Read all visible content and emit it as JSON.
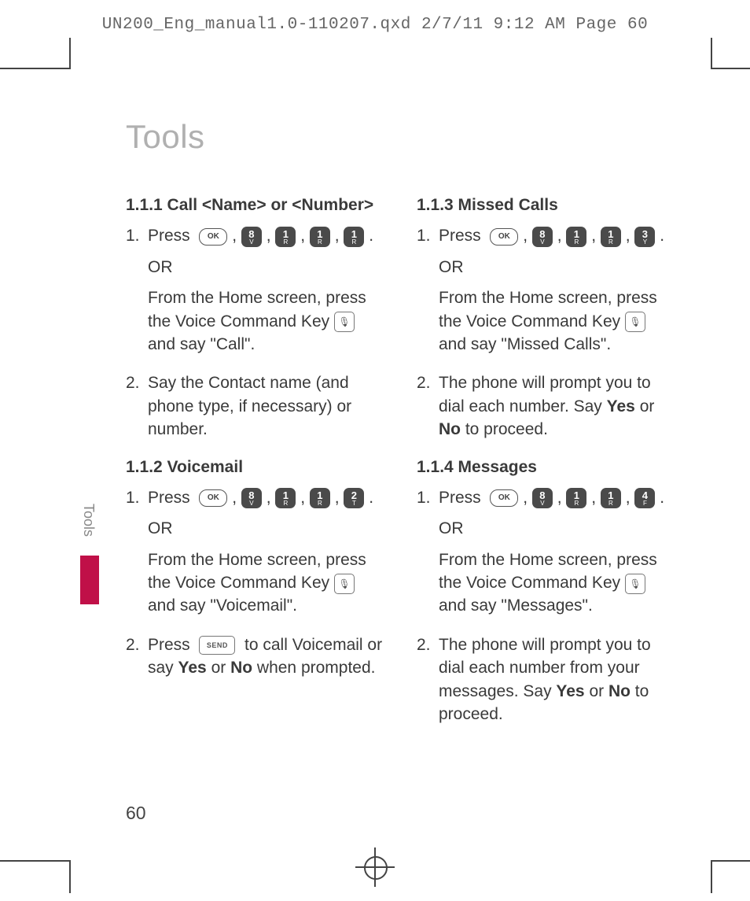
{
  "slug": "UN200_Eng_manual1.0-110207.qxd  2/7/11  9:12 AM  Page 60",
  "page_title": "Tools",
  "side_label": "Tools",
  "page_number": "60",
  "keys": {
    "ok": "OK",
    "k8": {
      "n": "8",
      "l": "V"
    },
    "k1": {
      "n": "1",
      "l": "R"
    },
    "k2": {
      "n": "2",
      "l": "T"
    },
    "k3": {
      "n": "3",
      "l": "Y"
    },
    "k4": {
      "n": "4",
      "l": "F"
    },
    "voice": "🎙",
    "send": "SEND"
  },
  "s111": {
    "heading": "1.1.1 Call <Name> or <Number>",
    "press": "Press",
    "or": "OR",
    "home": "From the Home screen, press the Voice Command Key",
    "say": "and say \"Call\".",
    "step2": "Say the Contact name (and phone type, if necessary) or number."
  },
  "s112": {
    "heading": "1.1.2 Voicemail",
    "press": "Press",
    "or": "OR",
    "home": "From the Home screen, press the Voice Command Key",
    "say": "and say \"Voicemail\".",
    "step2a": "Press",
    "step2b": "to call Voicemail or say ",
    "yes": "Yes",
    "orword": " or ",
    "no": "No",
    "step2c": " when prompted."
  },
  "s113": {
    "heading": "1.1.3 Missed Calls",
    "press": "Press",
    "or": "OR",
    "home": "From the Home screen, press the Voice Command Key",
    "say": "and say \"Missed Calls\".",
    "step2a": "The phone will prompt you to dial each number. Say ",
    "yes": "Yes",
    "orword": " or ",
    "no": "No",
    "step2b": " to proceed."
  },
  "s114": {
    "heading": "1.1.4 Messages",
    "press": "Press",
    "or": "OR",
    "home": "From the Home screen, press the Voice Command Key",
    "say": "and say \"Messages\".",
    "step2a": "The phone will prompt you to dial each number from your messages. Say ",
    "yes": "Yes",
    "orword": " or ",
    "no": "No",
    "step2b": " to proceed."
  }
}
